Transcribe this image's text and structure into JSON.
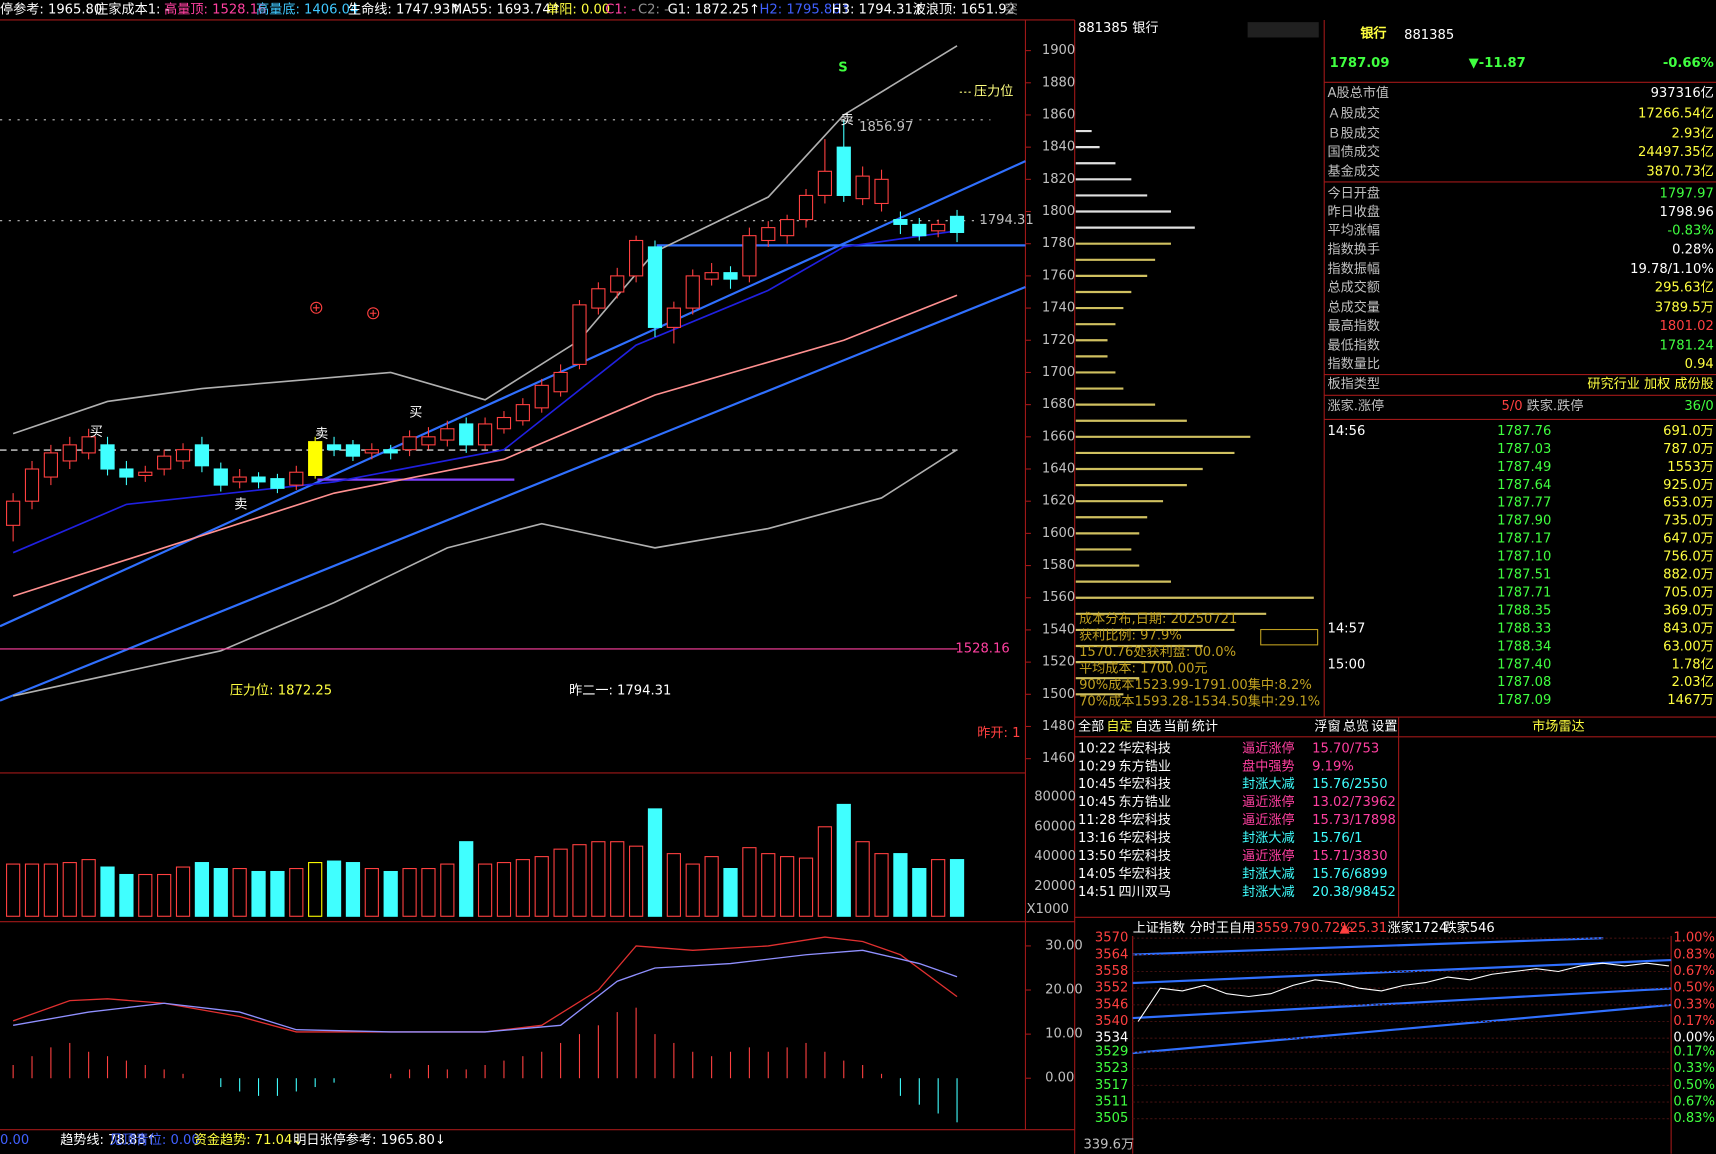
{
  "top_bar": [
    {
      "text": "停参考: 1965.80",
      "color": "#ffffff"
    },
    {
      "text": "庄家成本1: -",
      "color": "#ffffff"
    },
    {
      "text": "高量顶: 1528.16",
      "color": "#ff40a0"
    },
    {
      "text": "高量底: 1406.04",
      "color": "#40c8ff"
    },
    {
      "text": "生命线: 1747.93↑",
      "color": "#ffffff"
    },
    {
      "text": "MA55: 1693.74↑",
      "color": "#ffffff"
    },
    {
      "text": "单阳: 0.00",
      "color": "#ffff40"
    },
    {
      "text": "C1: -",
      "color": "#ff40a0"
    },
    {
      "text": "C2: -",
      "color": "#909090"
    },
    {
      "text": "G1: 1872.25↑",
      "color": "#ffffff"
    },
    {
      "text": "H2: 1795.86↑",
      "color": "#4060ff"
    },
    {
      "text": "H3: 1794.31↑",
      "color": "#ffffff"
    },
    {
      "text": "波浪顶: 1651.92",
      "color": "#ffffff"
    },
    {
      "text": "突",
      "color": "#909090"
    }
  ],
  "main": {
    "ylim": [
      1460,
      1900
    ],
    "yticks": [
      1460,
      1480,
      1500,
      1520,
      1540,
      1560,
      1580,
      1600,
      1620,
      1640,
      1660,
      1680,
      1700,
      1720,
      1740,
      1760,
      1780,
      1800,
      1820,
      1840,
      1860,
      1880,
      1900
    ],
    "highlight": 16,
    "candles": [
      {
        "o": 1605,
        "c": 1620,
        "h": 1625,
        "l": 1595
      },
      {
        "o": 1620,
        "c": 1640,
        "h": 1645,
        "l": 1615
      },
      {
        "o": 1635,
        "c": 1650,
        "h": 1655,
        "l": 1630
      },
      {
        "o": 1645,
        "c": 1655,
        "h": 1660,
        "l": 1640
      },
      {
        "o": 1650,
        "c": 1660,
        "h": 1665,
        "l": 1646
      },
      {
        "o": 1655,
        "c": 1640,
        "h": 1660,
        "l": 1636
      },
      {
        "o": 1640,
        "c": 1635,
        "h": 1645,
        "l": 1630
      },
      {
        "o": 1636,
        "c": 1638,
        "h": 1642,
        "l": 1632
      },
      {
        "o": 1640,
        "c": 1648,
        "h": 1652,
        "l": 1636
      },
      {
        "o": 1645,
        "c": 1652,
        "h": 1656,
        "l": 1640
      },
      {
        "o": 1655,
        "c": 1642,
        "h": 1660,
        "l": 1638
      },
      {
        "o": 1640,
        "c": 1630,
        "h": 1644,
        "l": 1626
      },
      {
        "o": 1632,
        "c": 1635,
        "h": 1640,
        "l": 1628
      },
      {
        "o": 1635,
        "c": 1632,
        "h": 1638,
        "l": 1628
      },
      {
        "o": 1634,
        "c": 1628,
        "h": 1637,
        "l": 1625
      },
      {
        "o": 1630,
        "c": 1638,
        "h": 1642,
        "l": 1627
      },
      {
        "o": 1636,
        "c": 1657,
        "h": 1660,
        "l": 1634
      },
      {
        "o": 1655,
        "c": 1652,
        "h": 1660,
        "l": 1648
      },
      {
        "o": 1655,
        "c": 1648,
        "h": 1658,
        "l": 1645
      },
      {
        "o": 1650,
        "c": 1652,
        "h": 1656,
        "l": 1646
      },
      {
        "o": 1652,
        "c": 1650,
        "h": 1655,
        "l": 1646
      },
      {
        "o": 1652,
        "c": 1660,
        "h": 1664,
        "l": 1648
      },
      {
        "o": 1655,
        "c": 1660,
        "h": 1666,
        "l": 1652
      },
      {
        "o": 1658,
        "c": 1665,
        "h": 1670,
        "l": 1654
      },
      {
        "o": 1668,
        "c": 1655,
        "h": 1672,
        "l": 1650
      },
      {
        "o": 1655,
        "c": 1668,
        "h": 1672,
        "l": 1652
      },
      {
        "o": 1665,
        "c": 1672,
        "h": 1676,
        "l": 1662
      },
      {
        "o": 1670,
        "c": 1680,
        "h": 1684,
        "l": 1667
      },
      {
        "o": 1678,
        "c": 1692,
        "h": 1696,
        "l": 1675
      },
      {
        "o": 1688,
        "c": 1700,
        "h": 1705,
        "l": 1685
      },
      {
        "o": 1705,
        "c": 1742,
        "h": 1745,
        "l": 1702
      },
      {
        "o": 1740,
        "c": 1752,
        "h": 1756,
        "l": 1736
      },
      {
        "o": 1750,
        "c": 1760,
        "h": 1765,
        "l": 1746
      },
      {
        "o": 1760,
        "c": 1782,
        "h": 1785,
        "l": 1756
      },
      {
        "o": 1778,
        "c": 1728,
        "h": 1782,
        "l": 1722
      },
      {
        "o": 1728,
        "c": 1740,
        "h": 1744,
        "l": 1718
      },
      {
        "o": 1740,
        "c": 1760,
        "h": 1764,
        "l": 1736
      },
      {
        "o": 1758,
        "c": 1762,
        "h": 1768,
        "l": 1754
      },
      {
        "o": 1762,
        "c": 1758,
        "h": 1766,
        "l": 1752
      },
      {
        "o": 1760,
        "c": 1785,
        "h": 1790,
        "l": 1756
      },
      {
        "o": 1782,
        "c": 1790,
        "h": 1794,
        "l": 1778
      },
      {
        "o": 1785,
        "c": 1795,
        "h": 1798,
        "l": 1780
      },
      {
        "o": 1795,
        "c": 1810,
        "h": 1814,
        "l": 1790
      },
      {
        "o": 1810,
        "c": 1825,
        "h": 1845,
        "l": 1805
      },
      {
        "o": 1840,
        "c": 1810,
        "h": 1857,
        "l": 1806
      },
      {
        "o": 1808,
        "c": 1822,
        "h": 1828,
        "l": 1804
      },
      {
        "o": 1805,
        "c": 1820,
        "h": 1826,
        "l": 1800
      },
      {
        "o": 1795,
        "c": 1792,
        "h": 1800,
        "l": 1786
      },
      {
        "o": 1792,
        "c": 1785,
        "h": 1796,
        "l": 1782
      },
      {
        "o": 1788,
        "c": 1792,
        "h": 1795,
        "l": 1784
      },
      {
        "o": 1797,
        "c": 1787,
        "h": 1801,
        "l": 1781
      }
    ],
    "lines": [
      {
        "color": "#b0b0b0",
        "x": [
          0,
          5,
          10,
          20,
          25,
          30,
          34,
          40,
          44,
          50
        ],
        "values": [
          1662,
          1682,
          1690,
          1700,
          1683,
          1720,
          1775,
          1809,
          1860,
          1903
        ]
      },
      {
        "color": "#b0b0b0",
        "x": [
          0,
          11,
          17,
          23,
          28,
          34,
          40,
          46,
          50
        ],
        "values": [
          1499,
          1527,
          1557,
          1591,
          1606,
          1591,
          1603,
          1622,
          1652
        ]
      },
      {
        "color": "#2020e0",
        "x": [
          0,
          6,
          17,
          26,
          33,
          40,
          44,
          50
        ],
        "values": [
          1588,
          1618,
          1632,
          1652,
          1717,
          1751,
          1778,
          1788
        ]
      },
      {
        "color": "#ff9090",
        "x": [
          0,
          17,
          26,
          34,
          44,
          50
        ],
        "values": [
          1561,
          1625,
          1646,
          1686,
          1720,
          1748
        ]
      }
    ],
    "levels": [
      {
        "value": 1856.97,
        "color": "#c0c0c0"
      },
      {
        "value": 1794.31,
        "color": "#c0c0c0"
      },
      {
        "value": 1528.16,
        "color": "#ff40a0"
      }
    ],
    "pressure": "压力位",
    "signal": "S",
    "pressure_label": "压力位: 1872.25",
    "prev_label": "昨二一: 1794.31",
    "open_label": "昨开: 1",
    "markers": [
      "卖",
      "买",
      "卖",
      "卖",
      "买"
    ]
  },
  "volume": {
    "ylim": [
      0,
      80000
    ],
    "yticks": [
      20000,
      40000,
      60000,
      80000
    ],
    "unit": "X1000",
    "values": [
      35000,
      35000,
      35000,
      36000,
      38000,
      33000,
      28000,
      28000,
      28000,
      33000,
      36000,
      32000,
      32000,
      30000,
      30000,
      32000,
      36000,
      37000,
      36000,
      32000,
      30000,
      32000,
      32000,
      35000,
      50000,
      35000,
      36000,
      38000,
      40000,
      45000,
      48000,
      50000,
      50000,
      47000,
      72000,
      42000,
      35000,
      40000,
      32000,
      46000,
      42000,
      40000,
      39000,
      60000,
      75000,
      50000,
      42000,
      42000,
      32000,
      38000,
      38000
    ]
  },
  "macd": {
    "yticks": [
      {
        "value": 0,
        "label": "0.00"
      },
      {
        "value": 10,
        "label": "10.00"
      },
      {
        "value": 20,
        "label": "20.00"
      },
      {
        "value": 30,
        "label": "30.00"
      }
    ],
    "hist": [
      3,
      5,
      7,
      8,
      6,
      5,
      4,
      3,
      2,
      1,
      0,
      -2,
      -3,
      -4,
      -4,
      -3,
      -2,
      -1,
      0,
      0,
      1,
      2,
      3,
      2,
      2,
      3,
      4,
      5,
      6,
      8,
      10,
      12,
      15,
      16,
      10,
      8,
      6,
      5,
      6,
      7,
      6,
      7,
      8,
      6,
      4,
      3,
      1,
      -4,
      -6,
      -8,
      -10
    ],
    "lines": [
      {
        "color": "#e03030",
        "x": [
          0,
          3,
          5,
          8,
          12,
          15,
          20,
          25,
          28,
          31,
          33,
          36,
          40,
          43,
          45,
          47,
          50
        ],
        "values": [
          13,
          17.6,
          18,
          17,
          14,
          10.5,
          10.5,
          10.5,
          12,
          20,
          30,
          29,
          30,
          32,
          31,
          28,
          18.5
        ]
      },
      {
        "color": "#9090ff",
        "x": [
          0,
          4,
          8,
          12,
          15,
          20,
          25,
          29,
          32,
          34,
          38,
          42,
          45,
          48,
          50
        ],
        "values": [
          12,
          15,
          17,
          15,
          11,
          10.5,
          10.5,
          12,
          22,
          25,
          26,
          28,
          29,
          26,
          23
        ]
      }
    ]
  },
  "bottom_bar": [
    {
      "text": "0.00",
      "color": "#4060ff"
    },
    {
      "text": "趋势线: 78.88↑",
      "color": "#ffffff"
    },
    {
      "text": "见顶青位: 0.00",
      "color": "#4060ff"
    },
    {
      "text": "资金趋势: 71.04↓",
      "color": "#ffff40"
    },
    {
      "text": "明日张停参考: 1965.80↓",
      "color": "#ffffff"
    }
  ],
  "chips": {
    "title": "881385 银行",
    "start": 1500,
    "step": 10,
    "values": [
      30,
      40,
      60,
      80,
      100,
      120,
      150,
      60,
      40,
      35,
      40,
      45,
      55,
      70,
      80,
      100,
      110,
      70,
      50,
      30,
      25,
      20,
      20,
      25,
      30,
      35,
      45,
      50,
      60,
      75,
      60,
      45,
      35,
      25,
      15,
      10
    ],
    "notes": [
      "成本分布,日期: 20250721",
      "获利比例: 97.9%",
      "1570.76处获利盘: 00.0%",
      "平均成本: 1700.00元",
      "90%成本1523.99-1791.00集中:8.2%",
      "70%成本1593.28-1534.50集中:29.1%"
    ]
  },
  "quote": {
    "name": "银行",
    "code": "881385",
    "price": "1787.09",
    "change": "▼-11.87",
    "pct": "-0.66%",
    "rows": [
      {
        "label": "A股总市值",
        "value": "937316亿",
        "color": "#ffffff"
      },
      {
        "label": "Ａ股成交",
        "value": "17266.54亿",
        "color": "#ffff40"
      },
      {
        "label": "Ｂ股成交",
        "value": "2.93亿",
        "color": "#ffff40"
      },
      {
        "label": "国债成交",
        "value": "24497.35亿",
        "color": "#ffff40"
      },
      {
        "label": "基金成交",
        "value": "3870.73亿",
        "color": "#ffff40"
      },
      {
        "label": "今日开盘",
        "value": "1797.97",
        "color": "#40ff40"
      },
      {
        "label": "昨日收盘",
        "value": "1798.96",
        "color": "#ffffff"
      },
      {
        "label": "平均涨幅",
        "value": "-0.83%",
        "color": "#40ff40"
      },
      {
        "label": "指数换手",
        "value": "0.28%",
        "color": "#ffffff"
      },
      {
        "label": "指数振幅",
        "value": "19.78/1.10%",
        "color": "#ffffff"
      },
      {
        "label": "总成交额",
        "value": "295.63亿",
        "color": "#ffff40"
      },
      {
        "label": "总成交量",
        "value": "3789.5万",
        "color": "#ffff40"
      },
      {
        "label": "最高指数",
        "value": "1801.02",
        "color": "#ff4040"
      },
      {
        "label": "最低指数",
        "value": "1781.24",
        "color": "#40ff40"
      },
      {
        "label": "指数量比",
        "value": "0.94",
        "color": "#ffff40"
      },
      {
        "label": "板指类型",
        "value": "研究行业 加权 成份股",
        "color": "#ffff40"
      }
    ],
    "breadth": [
      "涨家.涨停",
      "5/0",
      "跌家.跌停",
      "36/0"
    ]
  },
  "ticks": {
    "times": [
      "14:56",
      "14:57",
      "15:00"
    ],
    "time_rows": [
      0,
      11,
      13
    ],
    "rows": [
      [
        "1787.76",
        "691.0万"
      ],
      [
        "1787.03",
        "787.0万"
      ],
      [
        "1787.49",
        "1553万"
      ],
      [
        "1787.64",
        "925.0万"
      ],
      [
        "1787.77",
        "653.0万"
      ],
      [
        "1787.90",
        "735.0万"
      ],
      [
        "1787.17",
        "647.0万"
      ],
      [
        "1787.10",
        "756.0万"
      ],
      [
        "1787.51",
        "882.0万"
      ],
      [
        "1787.71",
        "705.0万"
      ],
      [
        "1788.35",
        "369.0万"
      ],
      [
        "1788.33",
        "843.0万"
      ],
      [
        "1788.34",
        "63.00万"
      ],
      [
        "1787.40",
        "1.78亿"
      ],
      [
        "1787.08",
        "2.03亿"
      ],
      [
        "1787.09",
        "1467万"
      ]
    ]
  },
  "news": {
    "tabs": [
      "全部",
      "自定",
      "自选",
      "当前",
      "统计"
    ],
    "tools": [
      "浮窗",
      "总览",
      "设置"
    ],
    "radar": "市场雷达",
    "rows": [
      [
        "10:22",
        "华宏科技",
        "逼近涨停",
        "15.70/753"
      ],
      [
        "10:29",
        "东方锆业",
        "盘中强势",
        "9.19%"
      ],
      [
        "10:45",
        "华宏科技",
        "封涨大减",
        "15.76/2550"
      ],
      [
        "10:45",
        "东方锆业",
        "逼近涨停",
        "13.02/73962"
      ],
      [
        "11:28",
        "华宏科技",
        "逼近涨停",
        "15.73/17898"
      ],
      [
        "13:16",
        "华宏科技",
        "封涨大减",
        "15.76/1"
      ],
      [
        "13:50",
        "华宏科技",
        "逼近涨停",
        "15.71/3830"
      ],
      [
        "14:05",
        "华宏科技",
        "封涨大减",
        "15.76/6899"
      ],
      [
        "14:51",
        "四川双马",
        "封涨大减",
        "20.38/98452"
      ]
    ]
  },
  "index": {
    "header": [
      "上证指数",
      "分时王自用",
      "3559.79",
      "0.72%",
      "▲25.31",
      "涨家1724",
      "跌家546"
    ],
    "yticks": [
      3570,
      3564,
      3558,
      3552,
      3546,
      3540,
      3534,
      3529,
      3523,
      3517,
      3511,
      3505
    ],
    "pct": [
      "1.00%",
      "0.83%",
      "0.67%",
      "0.50%",
      "0.33%",
      "0.17%",
      "0.00%",
      "0.17%",
      "0.33%",
      "0.50%",
      "0.67%",
      "0.83%"
    ],
    "volume_label": "339.6万",
    "values": [
      3540,
      3552,
      3551,
      3553,
      3550,
      3549,
      3550,
      3553,
      3555,
      3554,
      3552,
      3551,
      3553,
      3554,
      3556,
      3555,
      3557,
      3558,
      3559,
      3558,
      3560,
      3561,
      3560,
      3561,
      3560
    ]
  }
}
